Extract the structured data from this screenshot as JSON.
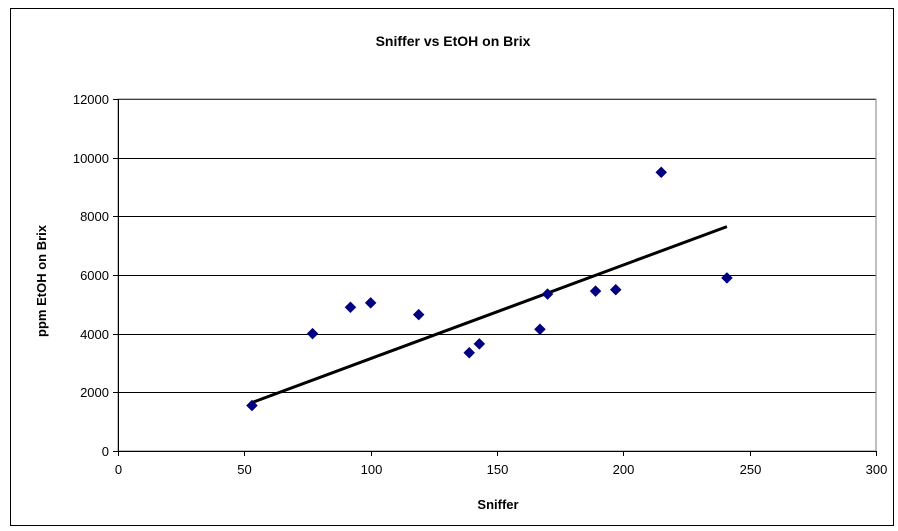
{
  "chart_data": {
    "type": "scatter",
    "title": "Sniffer vs EtOH on Brix",
    "xlabel": "Sniffer",
    "ylabel": "ppm EtOH on Brix",
    "xlim": [
      0,
      300
    ],
    "ylim": [
      0,
      12000
    ],
    "xticks": [
      0,
      50,
      100,
      150,
      200,
      250,
      300
    ],
    "yticks": [
      0,
      2000,
      4000,
      6000,
      8000,
      10000,
      12000
    ],
    "grid": "horizontal",
    "legend": "none",
    "marker": "diamond",
    "series": [
      {
        "points": [
          {
            "x": 53,
            "y": 1550
          },
          {
            "x": 77,
            "y": 4000
          },
          {
            "x": 92,
            "y": 4900
          },
          {
            "x": 100,
            "y": 5050
          },
          {
            "x": 119,
            "y": 4650
          },
          {
            "x": 139,
            "y": 3350
          },
          {
            "x": 143,
            "y": 3650
          },
          {
            "x": 167,
            "y": 4150
          },
          {
            "x": 170,
            "y": 5350
          },
          {
            "x": 189,
            "y": 5450
          },
          {
            "x": 197,
            "y": 5500
          },
          {
            "x": 215,
            "y": 9500
          },
          {
            "x": 241,
            "y": 5900
          }
        ]
      }
    ],
    "trendline": {
      "type": "linear",
      "x": [
        53,
        241
      ],
      "y": [
        1650,
        7650
      ]
    },
    "colors": {
      "marker": "#000080",
      "trendline": "#000000",
      "grid": "#000000",
      "plot_border": "#808080"
    }
  }
}
